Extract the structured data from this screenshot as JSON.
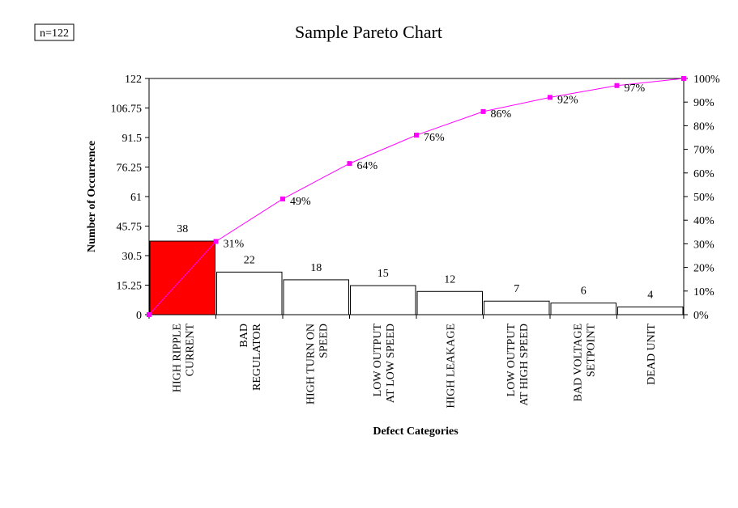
{
  "sample_size_label": "n=122",
  "colors": {
    "highlight_bar": "#ff0000",
    "bar": "#ffffff",
    "cumulative_line": "#ff00ff"
  },
  "chart_data": {
    "type": "bar",
    "title": "Sample Pareto Chart",
    "xlabel": "Defect Categories",
    "ylabel": "Number of Occurrence",
    "ylim": [
      0,
      122
    ],
    "y_ticks": [
      "0",
      "15.25",
      "30.5",
      "45.75",
      "61",
      "76.25",
      "91.5",
      "106.75",
      "122"
    ],
    "y2lim": [
      0,
      100
    ],
    "y2_ticks": [
      "0%",
      "10%",
      "20%",
      "30%",
      "40%",
      "50%",
      "60%",
      "70%",
      "80%",
      "90%",
      "100%"
    ],
    "categories": [
      [
        "HIGH RIPPLE",
        "CURRENT"
      ],
      [
        "BAD",
        "REGULATOR"
      ],
      [
        "HIGH TURN ON",
        "SPEED"
      ],
      [
        "LOW OUTPUT",
        "AT LOW SPEED"
      ],
      [
        "HIGH LEAKAGE"
      ],
      [
        "LOW OUTPUT",
        "AT HIGH SPEED"
      ],
      [
        "BAD VOLTAGE",
        "SETPOINT"
      ],
      [
        "DEAD UNIT"
      ]
    ],
    "values": [
      38,
      22,
      18,
      15,
      12,
      7,
      6,
      4
    ],
    "value_labels": [
      "38",
      "22",
      "18",
      "15",
      "12",
      "7",
      "6",
      "4"
    ],
    "cumulative_percent": [
      0,
      31,
      49,
      64,
      76,
      86,
      92,
      97,
      100
    ],
    "cumulative_labels": [
      "",
      "31%",
      "49%",
      "64%",
      "76%",
      "86%",
      "92%",
      "97%",
      ""
    ],
    "grid": false,
    "legend": "none"
  }
}
